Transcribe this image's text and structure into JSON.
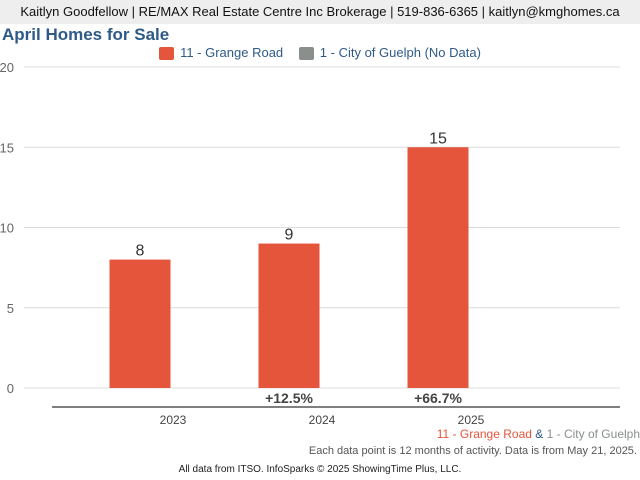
{
  "header": {
    "contact": "Kaitlyn Goodfellow | RE/MAX Real Estate Centre Inc Brokerage | 519-836-6365 | kaitlyn@kmghomes.ca"
  },
  "colors": {
    "primary": "#e4553c",
    "secondary": "#8a8f8c",
    "title": "#2e5a87"
  },
  "chart_data": {
    "type": "bar",
    "title": "April Homes for Sale",
    "categories": [
      "2023",
      "2024",
      "2025"
    ],
    "series": [
      {
        "name": "11 - Grange Road",
        "values": [
          8,
          9,
          15
        ],
        "color": "#e4553c"
      },
      {
        "name": "1 - City of Guelph (No Data)",
        "values": [
          null,
          null,
          null
        ],
        "color": "#8a8f8c"
      }
    ],
    "data_labels": [
      "8",
      "9",
      "15"
    ],
    "pct_changes": [
      "",
      "+12.5%",
      "+66.7%"
    ],
    "yticks": [
      "0",
      "5",
      "10",
      "15",
      "20"
    ],
    "ylim": [
      0,
      20
    ],
    "grid": true,
    "legend": "top-center",
    "xlabel": "",
    "ylabel": ""
  },
  "comparison": {
    "area1": "11 - Grange Road",
    "amp": "&",
    "area2": "1 - City of Guelph"
  },
  "note": "Each data point is 12 months of activity. Data is from May 21, 2025.",
  "footer": "All data from ITSO. InfoSparks © 2025 ShowingTime Plus, LLC."
}
